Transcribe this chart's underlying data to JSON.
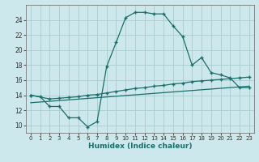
{
  "xlabel": "Humidex (Indice chaleur)",
  "bg_color": "#cce8ec",
  "grid_color": "#aacccc",
  "line_color": "#1a6e6a",
  "xlim": [
    -0.5,
    23.5
  ],
  "ylim": [
    9.0,
    26.0
  ],
  "xticks": [
    0,
    1,
    2,
    3,
    4,
    5,
    6,
    7,
    8,
    9,
    10,
    11,
    12,
    13,
    14,
    15,
    16,
    17,
    18,
    19,
    20,
    21,
    22,
    23
  ],
  "yticks": [
    10,
    12,
    14,
    16,
    18,
    20,
    22,
    24
  ],
  "line1_x": [
    0,
    1,
    2,
    3,
    4,
    5,
    6,
    7,
    8,
    9,
    10,
    11,
    12,
    13,
    14,
    15,
    16,
    17,
    18,
    19,
    20,
    21,
    22,
    23
  ],
  "line1_y": [
    14.0,
    13.8,
    12.5,
    12.5,
    11.0,
    11.0,
    9.8,
    10.5,
    17.8,
    21.0,
    24.3,
    25.0,
    25.0,
    24.8,
    24.8,
    23.2,
    21.8,
    18.0,
    19.0,
    17.0,
    16.7,
    16.3,
    15.0,
    15.0
  ],
  "line2_x": [
    0,
    2,
    3,
    4,
    5,
    6,
    7,
    8,
    9,
    10,
    11,
    12,
    13,
    14,
    15,
    16,
    17,
    18,
    19,
    20,
    21,
    22,
    23
  ],
  "line2_y": [
    14.0,
    13.5,
    13.6,
    13.7,
    13.8,
    14.0,
    14.1,
    14.3,
    14.5,
    14.7,
    14.9,
    15.0,
    15.2,
    15.3,
    15.5,
    15.6,
    15.8,
    15.9,
    16.0,
    16.1,
    16.2,
    16.3,
    16.4
  ],
  "line3_x": [
    0,
    23
  ],
  "line3_y": [
    13.0,
    15.2
  ]
}
